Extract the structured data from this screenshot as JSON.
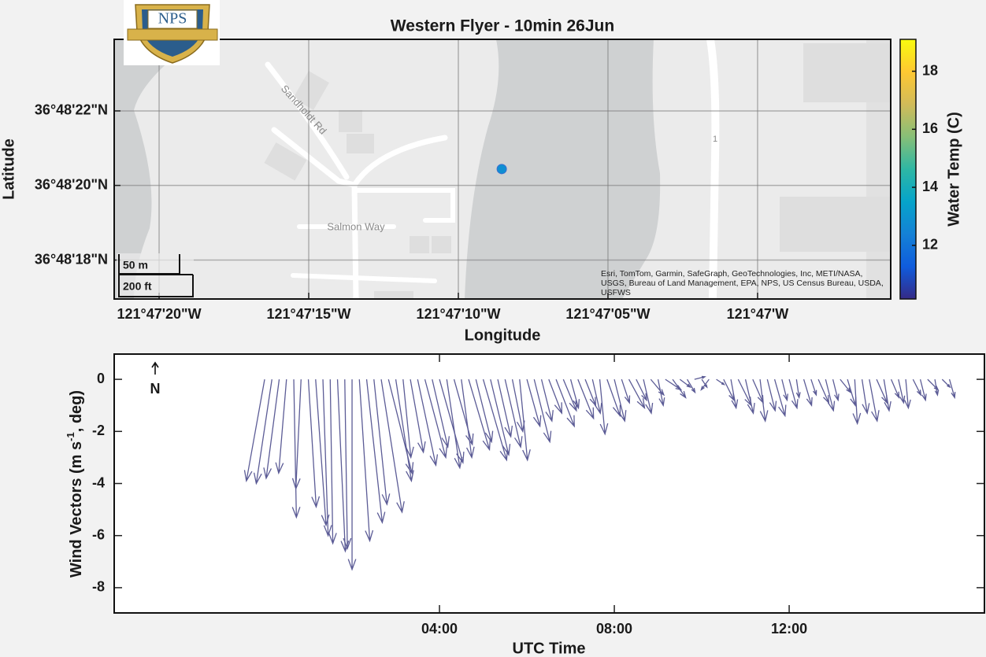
{
  "chart_data": [
    {
      "type": "map-scatter",
      "title": "Western Flyer - 10min 26Jun",
      "xlabel": "Longitude",
      "ylabel": "Latitude",
      "logo_text": "NPS",
      "x": [
        -121.785708
      ],
      "y": [
        36.805678
      ],
      "c": [
        12.8
      ],
      "xlim": [
        -121.789306,
        -121.782097
      ],
      "ylim": [
        36.80471,
        36.806644
      ],
      "xticks": [
        {
          "value": -121.788889,
          "label": "121°47'20\"W"
        },
        {
          "value": -121.7875,
          "label": "121°47'15\"W"
        },
        {
          "value": -121.786111,
          "label": "121°47'10\"W"
        },
        {
          "value": -121.784722,
          "label": "121°47'05\"W"
        },
        {
          "value": -121.783333,
          "label": "121°47'W"
        }
      ],
      "yticks": [
        {
          "value": 36.806111,
          "label": "36°48'22\"N"
        },
        {
          "value": 36.805556,
          "label": "36°48'20\"N"
        },
        {
          "value": 36.805,
          "label": "36°48'18\"N"
        }
      ],
      "grid": true,
      "clabel": "Water Temp (C)",
      "clim": [
        10.15,
        19.1
      ],
      "cticks": [
        12,
        14,
        16,
        18
      ],
      "colormap": [
        "#352a87",
        "#0f5cdd",
        "#1481d6",
        "#06a4ca",
        "#2eb7a4",
        "#87bf77",
        "#d1bb59",
        "#fec832",
        "#f9fb0e"
      ],
      "map_labels": [
        "Sandholdt Rd",
        "Salmon Way",
        "1"
      ],
      "scale_bar": [
        "50 m",
        "200 ft"
      ],
      "attribution": [
        "Esri, TomTom, Garmin, SafeGraph, GeoTechnologies, Inc, METI/NASA,",
        "USGS, Bureau of Land Management, EPA, NPS, US Census Bureau, USDA,",
        "USFWS"
      ]
    },
    {
      "type": "quiver",
      "xlabel": "UTC Time",
      "ylabel": [
        "Wind  Vectors  (m  s",
        "-1",
        ",  deg)"
      ],
      "north_label": "N",
      "color": "#5c5c96",
      "x": [
        0,
        10,
        20,
        30,
        40,
        50,
        60,
        70,
        80,
        90,
        100,
        110,
        120,
        130,
        140,
        150,
        160,
        170,
        180,
        190,
        200,
        210,
        220,
        230,
        240,
        250,
        260,
        270,
        280,
        290,
        300,
        310,
        320,
        330,
        340,
        350,
        360,
        370,
        380,
        390,
        400,
        410,
        420,
        430,
        440,
        450,
        460,
        470,
        480,
        490,
        500,
        510,
        520,
        530,
        540,
        550,
        560,
        570,
        580,
        590,
        600,
        610,
        620,
        630,
        640,
        650,
        660,
        670,
        680,
        690,
        700,
        710,
        720,
        730,
        740,
        750,
        760,
        770,
        780,
        790,
        800,
        810,
        820,
        830,
        840,
        850,
        860,
        870,
        880,
        890,
        900,
        910,
        920,
        930,
        940
      ],
      "u": [
        -0.7,
        -0.6,
        -0.5,
        -0.3,
        0.1,
        -0.2,
        0.3,
        0.4,
        0.2,
        0.1,
        0.3,
        0.1,
        0.0,
        0.4,
        0.6,
        0.5,
        0.8,
        0.9,
        0.6,
        0.3,
        0.5,
        0.7,
        0.8,
        0.6,
        0.9,
        0.5,
        0.7,
        0.4,
        0.8,
        0.6,
        0.9,
        0.7,
        0.5,
        0.6,
        0.4,
        0.3,
        0.5,
        0.6,
        0.4,
        0.5,
        0.7,
        0.5,
        0.3,
        0.6,
        0.4,
        0.3,
        0.2,
        0.5,
        0.4,
        0.3,
        0.6,
        0.4,
        0.3,
        0.5,
        0.2,
        0.6,
        0.5,
        0.4,
        0.3,
        0.4,
        0.2,
        -0.3,
        0.3,
        0.4,
        0.2,
        0.5,
        0.3,
        0.4,
        0.2,
        0.3,
        0.4,
        0.2,
        0.3,
        0.1,
        0.3,
        0.2,
        0.4,
        0.3,
        0.2,
        0.4,
        0.3,
        0.1,
        0.2,
        0.3,
        0.4,
        0.2,
        0.3,
        0.2,
        0.1,
        0.3,
        0.2,
        0.4,
        0.1,
        0.3,
        0.2
      ],
      "v": [
        -3.9,
        -4.0,
        -3.8,
        -3.6,
        -5.3,
        -4.2,
        -4.9,
        -5.6,
        -6.0,
        -6.3,
        -6.6,
        -6.5,
        -7.3,
        -6.2,
        -5.5,
        -4.8,
        -5.1,
        -3.6,
        -3.9,
        -3.0,
        -2.8,
        -3.3,
        -3.0,
        -2.6,
        -3.2,
        -3.4,
        -2.5,
        -3.0,
        -2.7,
        -2.4,
        -3.1,
        -2.9,
        -2.2,
        -2.6,
        -2.0,
        -3.1,
        -1.8,
        -2.4,
        -1.6,
        -1.3,
        -1.8,
        -1.2,
        -1.1,
        -1.5,
        -1.0,
        -1.3,
        -2.1,
        -1.4,
        -1.6,
        -0.9,
        -1.1,
        -0.8,
        -1.3,
        -0.6,
        -1.0,
        -0.4,
        -0.7,
        -0.3,
        -0.5,
        0.1,
        -0.3,
        -0.4,
        -0.2,
        -0.8,
        -1.1,
        -1.0,
        -1.3,
        -0.9,
        -1.6,
        -1.2,
        -1.4,
        -0.8,
        -1.1,
        -0.7,
        -1.0,
        -0.6,
        -0.9,
        -1.2,
        -0.8,
        -0.5,
        -1.0,
        -1.7,
        -1.3,
        -1.6,
        -0.9,
        -1.2,
        -0.7,
        -0.9,
        -1.1,
        -0.6,
        -0.8,
        -0.4,
        -0.6,
        -0.3,
        -0.7
      ],
      "xlim": [
        -206.5,
        988
      ],
      "xticks": [
        {
          "value": 240,
          "label": "04:00"
        },
        {
          "value": 480,
          "label": "08:00"
        },
        {
          "value": 720,
          "label": "12:00"
        }
      ],
      "ylim": [
        -8.97,
        0.97
      ],
      "yticks": [
        0,
        -2,
        -4,
        -6,
        -8
      ],
      "grid": false
    }
  ]
}
